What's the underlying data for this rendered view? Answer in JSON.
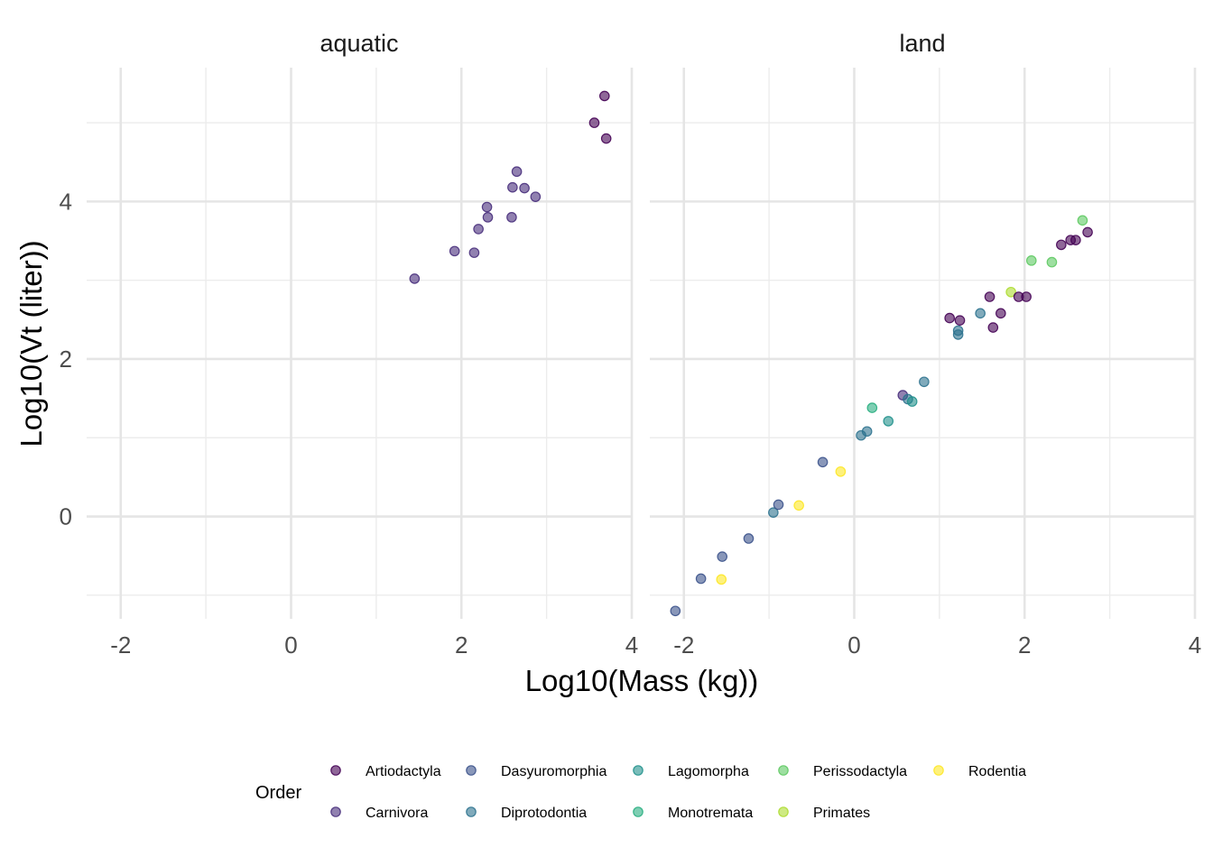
{
  "chart_data": {
    "type": "scatter",
    "xlabel": "Log10(Mass (kg))",
    "ylabel": "Log10(Vt (liter))",
    "xlim": [
      -2.4,
      4
    ],
    "ylim": [
      -1.3,
      5.7
    ],
    "x_ticks": [
      -2,
      0,
      2,
      4
    ],
    "y_ticks": [
      0,
      2,
      4
    ],
    "grid": true,
    "legend": {
      "title": "Order",
      "placement": "bottom",
      "entries": [
        {
          "name": "Artiodactyla",
          "color": "#440154"
        },
        {
          "name": "Carnivora",
          "color": "#472d7b"
        },
        {
          "name": "Dasyuromorphia",
          "color": "#3b528b"
        },
        {
          "name": "Diprotodontia",
          "color": "#2c728e"
        },
        {
          "name": "Lagomorpha",
          "color": "#21918c"
        },
        {
          "name": "Monotremata",
          "color": "#28ae80"
        },
        {
          "name": "Perissodactyla",
          "color": "#5ec962"
        },
        {
          "name": "Primates",
          "color": "#addc30"
        },
        {
          "name": "Rodentia",
          "color": "#fde725"
        }
      ]
    },
    "panels": [
      {
        "title": "aquatic",
        "points": [
          {
            "order": "Carnivora",
            "x": 1.45,
            "y": 3.02
          },
          {
            "order": "Carnivora",
            "x": 1.92,
            "y": 3.37
          },
          {
            "order": "Carnivora",
            "x": 2.15,
            "y": 3.35
          },
          {
            "order": "Carnivora",
            "x": 2.2,
            "y": 3.65
          },
          {
            "order": "Carnivora",
            "x": 2.3,
            "y": 3.93
          },
          {
            "order": "Carnivora",
            "x": 2.31,
            "y": 3.8
          },
          {
            "order": "Carnivora",
            "x": 2.59,
            "y": 3.8
          },
          {
            "order": "Carnivora",
            "x": 2.6,
            "y": 4.18
          },
          {
            "order": "Carnivora",
            "x": 2.65,
            "y": 4.38
          },
          {
            "order": "Carnivora",
            "x": 2.74,
            "y": 4.17
          },
          {
            "order": "Carnivora",
            "x": 2.87,
            "y": 4.06
          },
          {
            "order": "Artiodactyla",
            "x": 3.56,
            "y": 5.0
          },
          {
            "order": "Artiodactyla",
            "x": 3.68,
            "y": 5.34
          },
          {
            "order": "Artiodactyla",
            "x": 3.7,
            "y": 4.8
          }
        ]
      },
      {
        "title": "land",
        "points": [
          {
            "order": "Dasyuromorphia",
            "x": -2.1,
            "y": -1.2
          },
          {
            "order": "Dasyuromorphia",
            "x": -1.8,
            "y": -0.79
          },
          {
            "order": "Dasyuromorphia",
            "x": -1.55,
            "y": -0.51
          },
          {
            "order": "Rodentia",
            "x": -1.56,
            "y": -0.8
          },
          {
            "order": "Dasyuromorphia",
            "x": -1.24,
            "y": -0.28
          },
          {
            "order": "Diprotodontia",
            "x": -0.95,
            "y": 0.05
          },
          {
            "order": "Dasyuromorphia",
            "x": -0.89,
            "y": 0.15
          },
          {
            "order": "Rodentia",
            "x": -0.65,
            "y": 0.14
          },
          {
            "order": "Dasyuromorphia",
            "x": -0.37,
            "y": 0.69
          },
          {
            "order": "Rodentia",
            "x": -0.16,
            "y": 0.57
          },
          {
            "order": "Diprotodontia",
            "x": 0.08,
            "y": 1.03
          },
          {
            "order": "Diprotodontia",
            "x": 0.15,
            "y": 1.08
          },
          {
            "order": "Monotremata",
            "x": 0.21,
            "y": 1.38
          },
          {
            "order": "Lagomorpha",
            "x": 0.4,
            "y": 1.21
          },
          {
            "order": "Carnivora",
            "x": 0.57,
            "y": 1.54
          },
          {
            "order": "Diprotodontia",
            "x": 0.63,
            "y": 1.49
          },
          {
            "order": "Lagomorpha",
            "x": 0.68,
            "y": 1.46
          },
          {
            "order": "Diprotodontia",
            "x": 0.82,
            "y": 1.71
          },
          {
            "order": "Artiodactyla",
            "x": 1.12,
            "y": 2.52
          },
          {
            "order": "Artiodactyla",
            "x": 1.24,
            "y": 2.49
          },
          {
            "order": "Diprotodontia",
            "x": 1.22,
            "y": 2.36
          },
          {
            "order": "Diprotodontia",
            "x": 1.22,
            "y": 2.31
          },
          {
            "order": "Diprotodontia",
            "x": 1.48,
            "y": 2.58
          },
          {
            "order": "Artiodactyla",
            "x": 1.59,
            "y": 2.79
          },
          {
            "order": "Artiodactyla",
            "x": 1.63,
            "y": 2.4
          },
          {
            "order": "Artiodactyla",
            "x": 1.72,
            "y": 2.58
          },
          {
            "order": "Primates",
            "x": 1.84,
            "y": 2.85
          },
          {
            "order": "Artiodactyla",
            "x": 1.93,
            "y": 2.79
          },
          {
            "order": "Artiodactyla",
            "x": 2.02,
            "y": 2.79
          },
          {
            "order": "Perissodactyla",
            "x": 2.08,
            "y": 3.25
          },
          {
            "order": "Perissodactyla",
            "x": 2.32,
            "y": 3.23
          },
          {
            "order": "Artiodactyla",
            "x": 2.43,
            "y": 3.45
          },
          {
            "order": "Artiodactyla",
            "x": 2.54,
            "y": 3.51
          },
          {
            "order": "Artiodactyla",
            "x": 2.6,
            "y": 3.51
          },
          {
            "order": "Perissodactyla",
            "x": 2.68,
            "y": 3.76
          },
          {
            "order": "Artiodactyla",
            "x": 2.74,
            "y": 3.61
          }
        ]
      }
    ]
  }
}
